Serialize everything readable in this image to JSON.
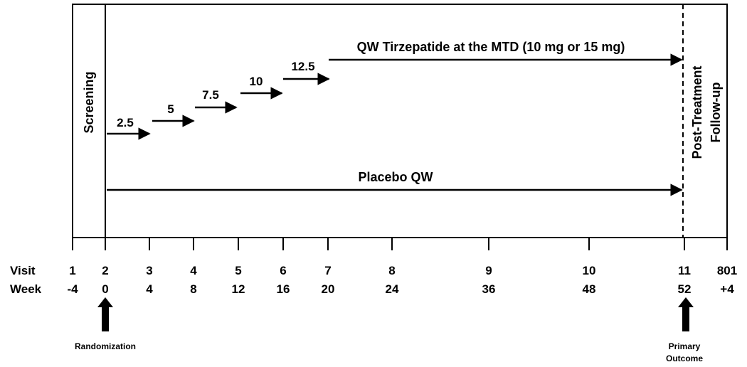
{
  "phases": {
    "screening": "Screening",
    "followup_line1": "Post-Treatment",
    "followup_line2": "Follow-up"
  },
  "arms": {
    "tirzepatide_label": "QW Tirzepatide at the MTD (10 mg or 15 mg)",
    "placebo_label": "Placebo QW",
    "dose_steps": [
      "2.5",
      "5",
      "7.5",
      "10",
      "12.5"
    ]
  },
  "timeline": {
    "visit_label": "Visit",
    "week_label": "Week",
    "visits": [
      "1",
      "2",
      "3",
      "4",
      "5",
      "6",
      "7",
      "8",
      "9",
      "10",
      "11",
      "801"
    ],
    "weeks": [
      "-4",
      "0",
      "4",
      "8",
      "12",
      "16",
      "20",
      "24",
      "36",
      "48",
      "52",
      "+4"
    ]
  },
  "markers": {
    "randomization": "Randomization",
    "primary_outcome_line1": "Primary",
    "primary_outcome_line2": "Outcome"
  }
}
